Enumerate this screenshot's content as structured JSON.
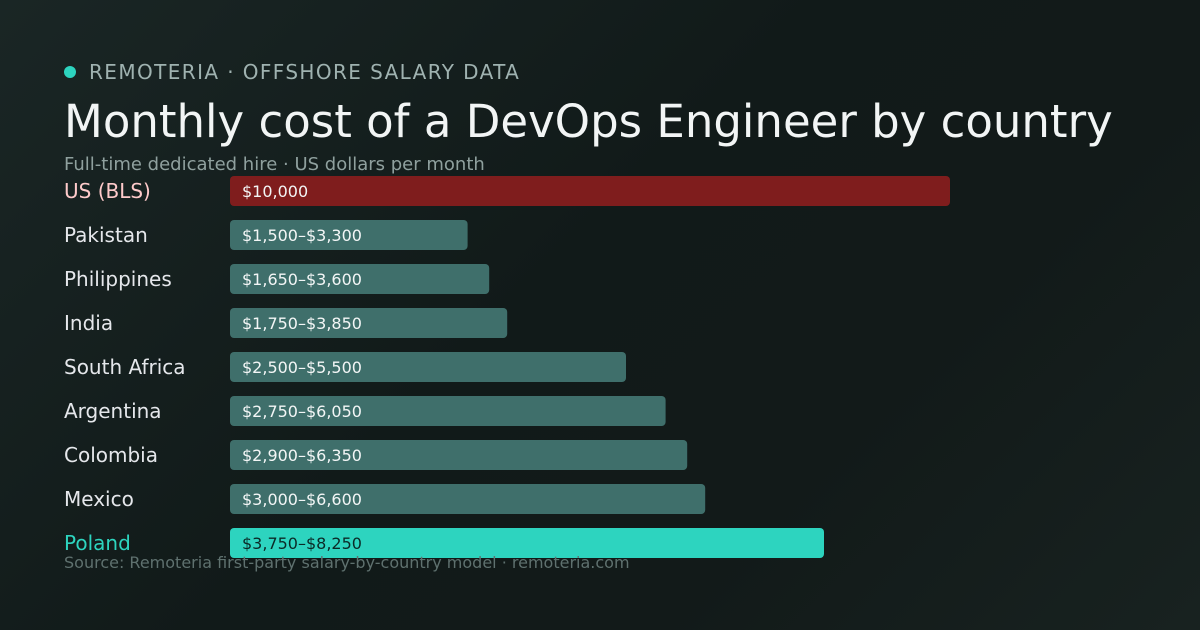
{
  "header": {
    "brand": "REMOTERIA · OFFSHORE SALARY DATA",
    "title": "Monthly cost of a DevOps Engineer by country",
    "subtitle": "Full-time dedicated hire · US dollars per month"
  },
  "footer": {
    "source": "Source: Remoteria first-party salary-by-country model · remoteria.com"
  },
  "colors": {
    "accent": "#2dd4bf",
    "baseline": "#7f1d1d",
    "bar": "#3f6f6b",
    "baseline_label": "#fecaca",
    "accent_label": "#2dd4bf",
    "label": "#e5e7eb"
  },
  "chart_data": {
    "type": "bar",
    "orientation": "horizontal",
    "categories": [
      "US (BLS)",
      "Pakistan",
      "Philippines",
      "India",
      "South Africa",
      "Argentina",
      "Colombia",
      "Mexico",
      "Poland"
    ],
    "values": [
      10000,
      3300,
      3600,
      3850,
      5500,
      6050,
      6350,
      6600,
      8250
    ],
    "labels": [
      "$10,000",
      "$1,500–$3,300",
      "$1,650–$3,600",
      "$1,750–$3,850",
      "$2,500–$5,500",
      "$2,750–$6,050",
      "$2,900–$6,350",
      "$3,000–$6,600",
      "$3,750–$8,250"
    ],
    "highlight": {
      "baseline": "US (BLS)",
      "accent": "Poland"
    },
    "xlim": [
      0,
      10000
    ],
    "xlabel": "",
    "ylabel": "",
    "grid": false,
    "legend": "none"
  }
}
